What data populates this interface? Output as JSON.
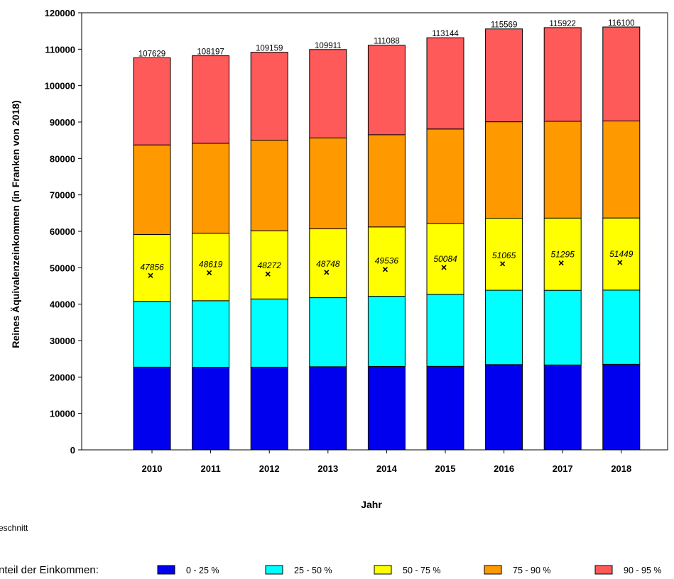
{
  "chart_data": {
    "type": "bar",
    "stacked": true,
    "xlabel": "Jahr",
    "ylabel": "Reines Äquivalenzeinkommen (in Franken von 2018)",
    "ylim": [
      0,
      120000
    ],
    "yticks": [
      0,
      10000,
      20000,
      30000,
      40000,
      50000,
      60000,
      70000,
      80000,
      90000,
      100000,
      110000,
      120000
    ],
    "categories": [
      "2010",
      "2011",
      "2012",
      "2013",
      "2014",
      "2015",
      "2016",
      "2017",
      "2018"
    ],
    "boundaries": {
      "p25": [
        22716,
        22671,
        22708,
        22821,
        22900,
        22932,
        23408,
        23312,
        23500
      ],
      "p50": [
        40765,
        40945,
        41432,
        41773,
        42157,
        42707,
        43820,
        43799,
        43867
      ],
      "p75": [
        59137,
        59481,
        60157,
        60677,
        61205,
        62162,
        63600,
        63635,
        63667
      ],
      "p90": [
        83723,
        84164,
        85026,
        85627,
        86524,
        88091,
        90075,
        90210,
        90300
      ],
      "p95": [
        107629,
        108197,
        109159,
        109911,
        111088,
        113144,
        115569,
        115922,
        116100
      ]
    },
    "mean": [
      47856,
      48619,
      48272,
      48748,
      49536,
      50084,
      51065,
      51295,
      51449
    ],
    "series": [
      {
        "name": "0 - 25  %",
        "color": "#0000ee"
      },
      {
        "name": "25 - 50  %",
        "color": "#00ffff"
      },
      {
        "name": "50 - 75  %",
        "color": "#ffff00"
      },
      {
        "name": "75 - 90  %",
        "color": "#ff9900"
      },
      {
        "name": "90 - 95  %",
        "color": "#ff5a5a"
      }
    ],
    "mean_legend_label": "eschnitt",
    "legend_title": "nteil der Einkommen:",
    "grid": false
  }
}
